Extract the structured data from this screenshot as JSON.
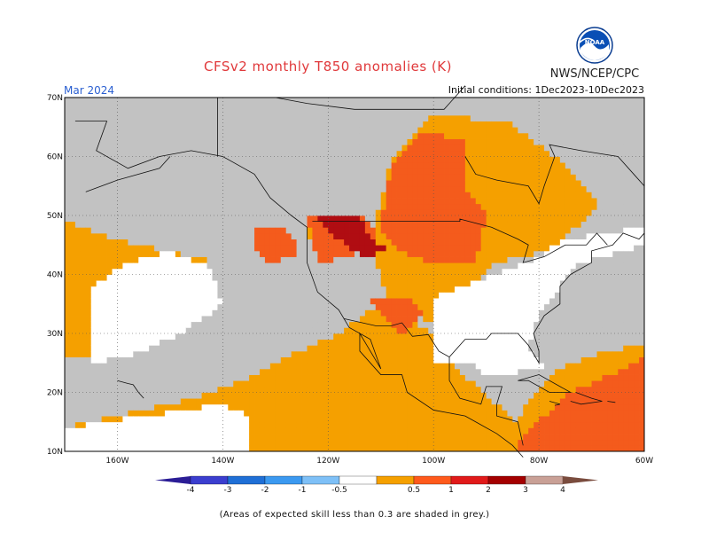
{
  "title": "CFSv2 monthly T850 anomalies (K)",
  "agency": "NWS/NCEP/CPC",
  "month": "Mar 2024",
  "initial_conditions": "Initial conditions: 1Dec2023-10Dec2023",
  "logo_text": "NOAA",
  "footnote": "(Areas of expected skill less than 0.3 are shaded in grey.)",
  "lat_labels": [
    "10N",
    "20N",
    "30N",
    "40N",
    "50N",
    "60N",
    "70N"
  ],
  "lon_labels": [
    "160W",
    "140W",
    "120W",
    "100W",
    "80W",
    "60W"
  ],
  "colorbar": {
    "labels": [
      "-4",
      "-3",
      "-2",
      "-1",
      "-0.5",
      "0.5",
      "1",
      "2",
      "3",
      "4"
    ],
    "colors": [
      "#2b1d96",
      "#3b3ecf",
      "#1f6fd6",
      "#3b99f0",
      "#7ec0f7",
      "#ffffff",
      "#f5a000",
      "#ff5a1c",
      "#e11a1a",
      "#a40000",
      "#c9a096",
      "#7a4c3e"
    ]
  },
  "map": {
    "lon_range": [
      -170,
      -60
    ],
    "lat_range": [
      10,
      70
    ],
    "colors": {
      "grey": "#c2c2c2",
      "white": "#ffffff",
      "orange": "#f5a000",
      "red": "#f45b1c",
      "darkred": "#b00d12"
    }
  }
}
